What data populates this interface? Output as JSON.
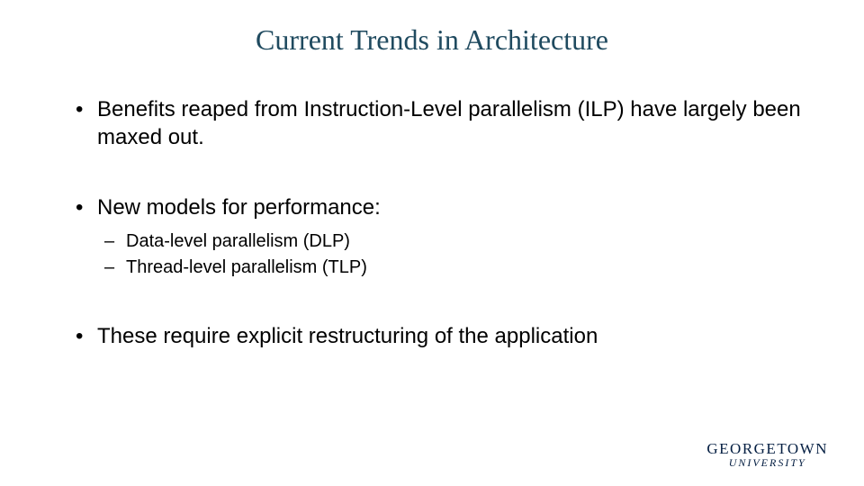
{
  "slide": {
    "title": "Current Trends in Architecture",
    "title_color": "#1f4a5f",
    "title_fontsize": 32,
    "body_fontsize": 24,
    "sub_fontsize": 20,
    "background_color": "#ffffff",
    "text_color": "#000000",
    "bullets": {
      "b1": "Benefits reaped from Instruction-Level parallelism (ILP) have largely been maxed out.",
      "b2": "New models for performance:",
      "b2_sub": {
        "s1": "Data-level parallelism (DLP)",
        "s2": "Thread-level parallelism (TLP)"
      },
      "b3": "These require explicit restructuring of the application"
    }
  },
  "logo": {
    "main": "GEORGETOWN",
    "sub": "UNIVERSITY",
    "color": "#041e42"
  }
}
